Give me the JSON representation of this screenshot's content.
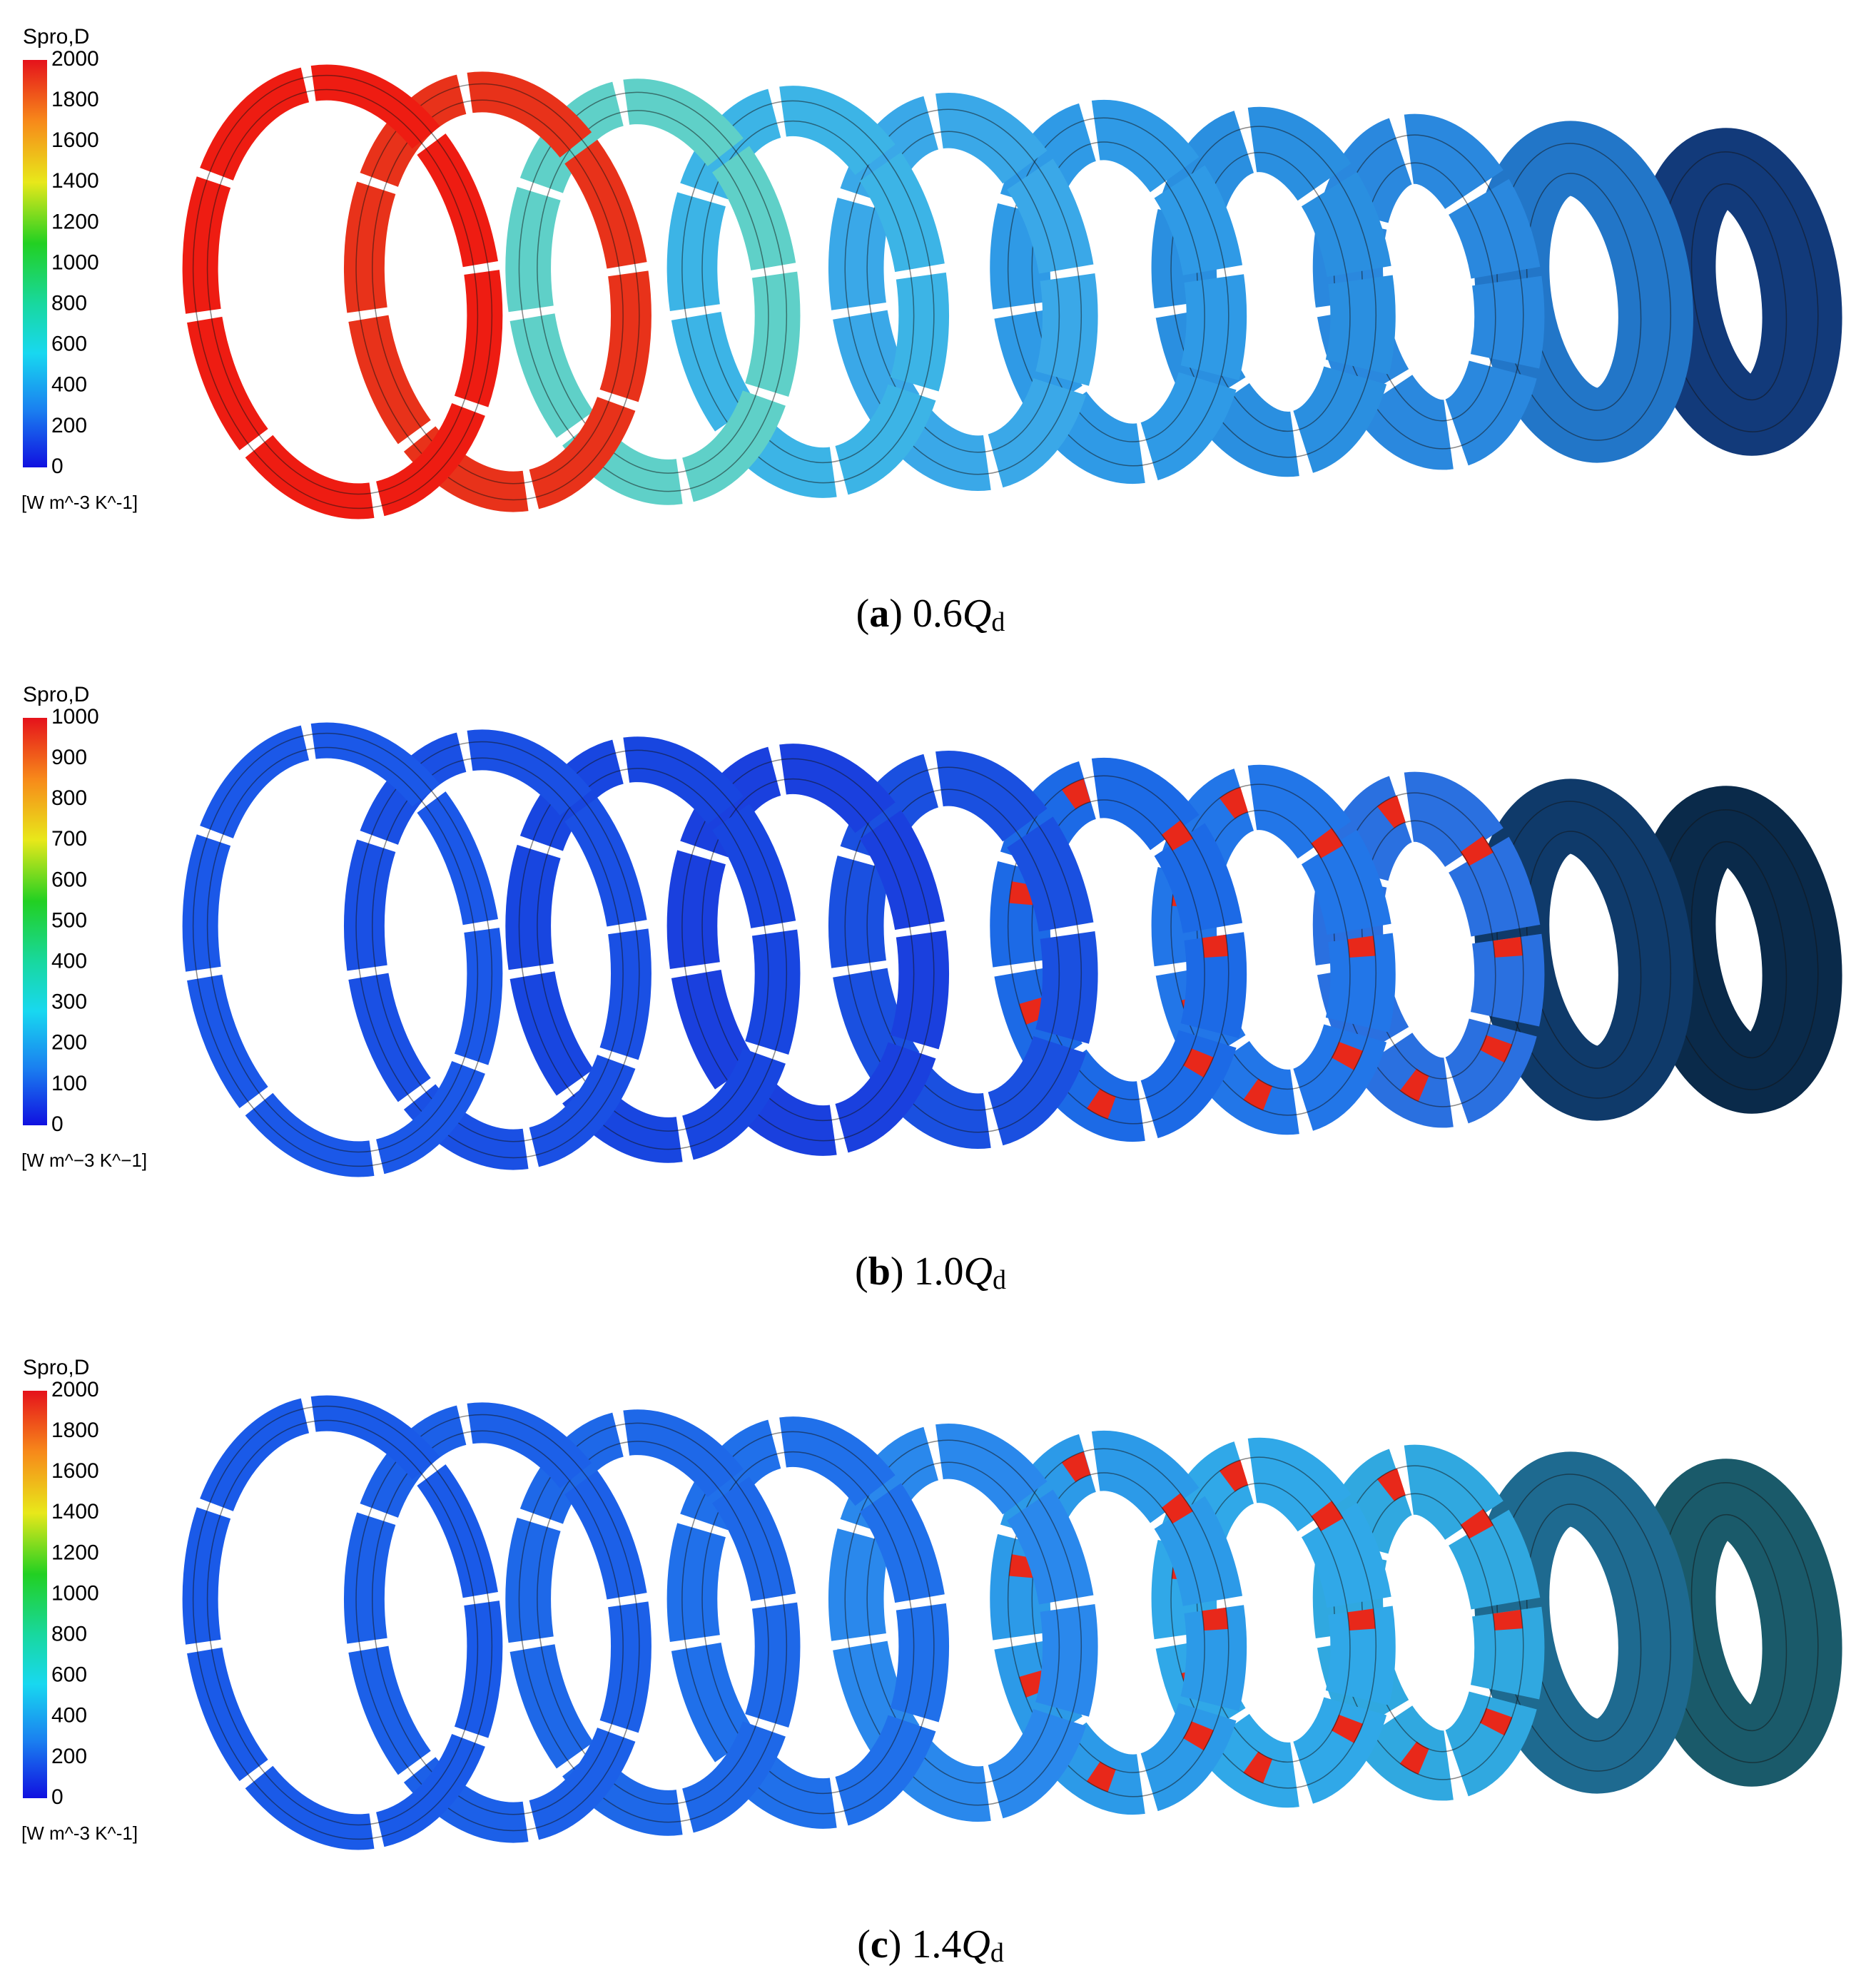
{
  "panels": [
    {
      "colorbar": {
        "title": "Spro,D",
        "ticks": [
          2000,
          1800,
          1600,
          1400,
          1200,
          1000,
          800,
          600,
          400,
          200,
          0
        ],
        "unit": "[W m^-3 K^-1]"
      },
      "caption": {
        "parts": [
          "(",
          "a",
          ") 0.6",
          "Q",
          "d"
        ]
      }
    },
    {
      "colorbar": {
        "title": "Spro,D",
        "ticks": [
          1000,
          900,
          800,
          700,
          600,
          500,
          400,
          300,
          200,
          100,
          0
        ],
        "unit": "[W m^−3 K^−1]"
      },
      "caption": {
        "parts": [
          "(",
          "b",
          ") 1.0",
          "Q",
          "d"
        ]
      }
    },
    {
      "colorbar": {
        "title": "Spro,D",
        "ticks": [
          2000,
          1800,
          1600,
          1400,
          1200,
          1000,
          800,
          600,
          400,
          200,
          0
        ],
        "unit": "[W m^-3 K^-1]"
      },
      "caption": {
        "parts": [
          "(",
          "c",
          ") 1.4",
          "Q",
          "d"
        ]
      }
    }
  ]
}
